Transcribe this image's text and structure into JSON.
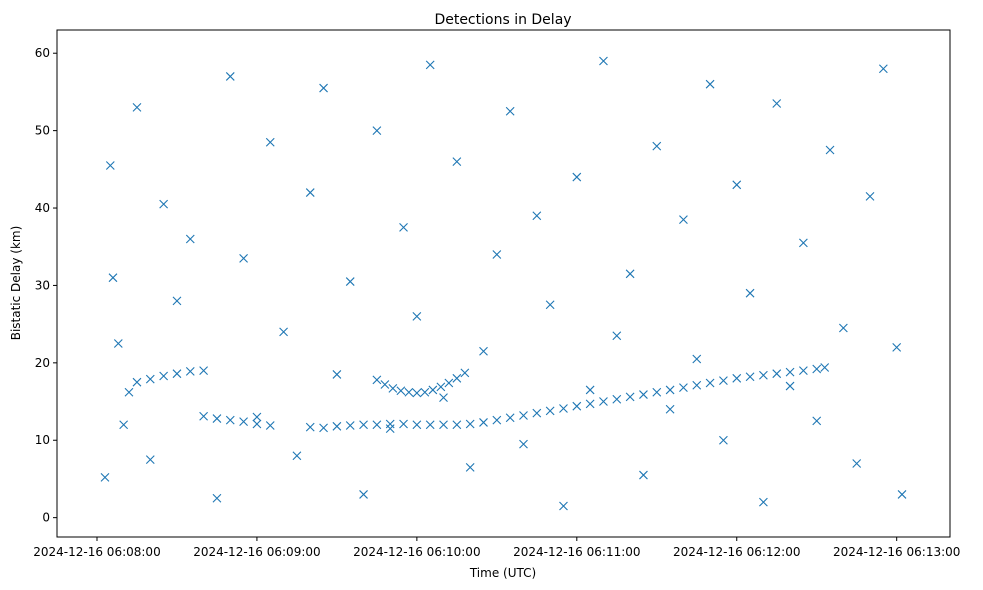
{
  "chart_data": {
    "type": "scatter",
    "title": "Detections in Delay",
    "xlabel": "Time (UTC)",
    "ylabel": "Bistatic Delay (km)",
    "x_ticks": [
      "2024-12-16 06:08:00",
      "2024-12-16 06:09:00",
      "2024-12-16 06:10:00",
      "2024-12-16 06:11:00",
      "2024-12-16 06:12:00",
      "2024-12-16 06:13:00"
    ],
    "y_ticks": [
      0,
      10,
      20,
      30,
      40,
      50,
      60
    ],
    "xlim": [
      "2024-12-16 06:07:45",
      "2024-12-16 06:13:20"
    ],
    "ylim": [
      -2.5,
      63
    ],
    "grid": false,
    "marker": "x",
    "color": "#1f77b4",
    "series": [
      {
        "x": [
          "2024-12-16 06:08:03",
          "2024-12-16 06:08:05",
          "2024-12-16 06:08:06",
          "2024-12-16 06:08:08",
          "2024-12-16 06:08:10",
          "2024-12-16 06:08:12",
          "2024-12-16 06:08:15",
          "2024-12-16 06:08:20",
          "2024-12-16 06:08:25",
          "2024-12-16 06:08:30",
          "2024-12-16 06:08:35",
          "2024-12-16 06:08:40",
          "2024-12-16 06:08:45",
          "2024-12-16 06:08:50",
          "2024-12-16 06:08:55",
          "2024-12-16 06:09:00",
          "2024-12-16 06:09:05",
          "2024-12-16 06:09:10",
          "2024-12-16 06:09:15",
          "2024-12-16 06:09:20",
          "2024-12-16 06:09:25",
          "2024-12-16 06:09:30",
          "2024-12-16 06:09:35",
          "2024-12-16 06:09:40",
          "2024-12-16 06:09:45",
          "2024-12-16 06:09:50",
          "2024-12-16 06:09:55",
          "2024-12-16 06:10:00",
          "2024-12-16 06:10:05",
          "2024-12-16 06:10:10",
          "2024-12-16 06:10:15",
          "2024-12-16 06:10:20",
          "2024-12-16 06:10:25",
          "2024-12-16 06:10:30",
          "2024-12-16 06:10:35",
          "2024-12-16 06:10:40",
          "2024-12-16 06:10:45",
          "2024-12-16 06:10:50",
          "2024-12-16 06:10:55",
          "2024-12-16 06:11:00",
          "2024-12-16 06:11:05",
          "2024-12-16 06:11:10",
          "2024-12-16 06:11:15",
          "2024-12-16 06:11:20",
          "2024-12-16 06:11:25",
          "2024-12-16 06:11:30",
          "2024-12-16 06:11:35",
          "2024-12-16 06:11:40",
          "2024-12-16 06:11:45",
          "2024-12-16 06:11:50",
          "2024-12-16 06:11:55",
          "2024-12-16 06:12:00",
          "2024-12-16 06:12:05",
          "2024-12-16 06:12:10",
          "2024-12-16 06:12:15",
          "2024-12-16 06:12:20",
          "2024-12-16 06:12:25",
          "2024-12-16 06:12:30",
          "2024-12-16 06:12:35",
          "2024-12-16 06:12:40",
          "2024-12-16 06:12:45",
          "2024-12-16 06:12:50",
          "2024-12-16 06:12:55",
          "2024-12-16 06:13:00",
          "2024-12-16 06:13:02"
        ],
        "y": [
          5.2,
          45.5,
          31.0,
          22.5,
          12.0,
          16.2,
          53.0,
          7.5,
          40.5,
          28.0,
          36.0,
          19.0,
          2.5,
          57.0,
          33.5,
          13.0,
          48.5,
          24.0,
          8.0,
          42.0,
          55.5,
          18.5,
          30.5,
          3.0,
          50.0,
          11.5,
          37.5,
          26.0,
          58.5,
          15.5,
          46.0,
          6.5,
          21.5,
          34.0,
          52.5,
          9.5,
          39.0,
          27.5,
          1.5,
          44.0,
          16.5,
          59.0,
          23.5,
          31.5,
          5.5,
          48.0,
          14.0,
          38.5,
          20.5,
          56.0,
          10.0,
          43.0,
          29.0,
          2.0,
          53.5,
          17.0,
          35.5,
          12.5,
          47.5,
          24.5,
          7.0,
          41.5,
          58.0,
          22.0,
          3.0
        ]
      },
      {
        "x": [
          "2024-12-16 06:08:15",
          "2024-12-16 06:08:20",
          "2024-12-16 06:08:25",
          "2024-12-16 06:08:30",
          "2024-12-16 06:08:35",
          "2024-12-16 06:08:40",
          "2024-12-16 06:08:45",
          "2024-12-16 06:08:50",
          "2024-12-16 06:08:55",
          "2024-12-16 06:09:00",
          "2024-12-16 06:09:05",
          "2024-12-16 06:09:20",
          "2024-12-16 06:09:25",
          "2024-12-16 06:09:30",
          "2024-12-16 06:09:35",
          "2024-12-16 06:09:40",
          "2024-12-16 06:09:45",
          "2024-12-16 06:09:50",
          "2024-12-16 06:09:55",
          "2024-12-16 06:10:00",
          "2024-12-16 06:10:05",
          "2024-12-16 06:10:10",
          "2024-12-16 06:10:15",
          "2024-12-16 06:10:20",
          "2024-12-16 06:10:25",
          "2024-12-16 06:10:30",
          "2024-12-16 06:10:35",
          "2024-12-16 06:10:40",
          "2024-12-16 06:10:45",
          "2024-12-16 06:10:50",
          "2024-12-16 06:10:55",
          "2024-12-16 06:11:00",
          "2024-12-16 06:11:05",
          "2024-12-16 06:11:10",
          "2024-12-16 06:11:15",
          "2024-12-16 06:11:20",
          "2024-12-16 06:11:25",
          "2024-12-16 06:11:30",
          "2024-12-16 06:11:35",
          "2024-12-16 06:11:40",
          "2024-12-16 06:11:45",
          "2024-12-16 06:11:50",
          "2024-12-16 06:11:55",
          "2024-12-16 06:12:00",
          "2024-12-16 06:12:05",
          "2024-12-16 06:12:10",
          "2024-12-16 06:12:15",
          "2024-12-16 06:12:20",
          "2024-12-16 06:12:25",
          "2024-12-16 06:12:30",
          "2024-12-16 06:12:33"
        ],
        "y": [
          17.5,
          17.9,
          18.3,
          18.6,
          18.9,
          13.1,
          12.8,
          12.6,
          12.4,
          12.1,
          11.9,
          11.7,
          11.6,
          11.8,
          11.9,
          12.0,
          12.0,
          12.1,
          12.1,
          12.0,
          12.0,
          12.0,
          12.0,
          12.1,
          12.3,
          12.6,
          12.9,
          13.2,
          13.5,
          13.8,
          14.1,
          14.4,
          14.7,
          15.0,
          15.3,
          15.6,
          15.9,
          16.2,
          16.5,
          16.8,
          17.1,
          17.4,
          17.7,
          18.0,
          18.2,
          18.4,
          18.6,
          18.8,
          19.0,
          19.2,
          19.4
        ]
      },
      {
        "x": [
          "2024-12-16 06:09:45",
          "2024-12-16 06:09:48",
          "2024-12-16 06:09:51",
          "2024-12-16 06:09:54",
          "2024-12-16 06:09:57",
          "2024-12-16 06:10:00",
          "2024-12-16 06:10:03",
          "2024-12-16 06:10:06",
          "2024-12-16 06:10:09",
          "2024-12-16 06:10:12",
          "2024-12-16 06:10:15",
          "2024-12-16 06:10:18"
        ],
        "y": [
          17.8,
          17.2,
          16.7,
          16.4,
          16.2,
          16.1,
          16.2,
          16.5,
          16.9,
          17.4,
          18.0,
          18.7
        ]
      }
    ]
  }
}
